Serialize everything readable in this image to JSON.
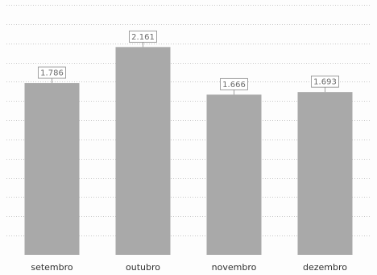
{
  "chart_data": {
    "type": "bar",
    "title": "",
    "xlabel": "",
    "ylabel": "",
    "categories": [
      "setembro",
      "outubro",
      "novembro",
      "dezembro"
    ],
    "values": [
      1.786,
      2.161,
      1.666,
      1.693
    ],
    "data_labels": [
      "1.786",
      "2.161",
      "1.666",
      "1.693"
    ],
    "ylim": [
      0,
      2.6
    ],
    "grid": true,
    "legend": "none",
    "colors": {
      "bar": "#a9a9a9",
      "grid": "#c8c8c8",
      "label_border": "#8a8a8a",
      "label_text": "#6a6a6a",
      "tick_text": "#303030"
    }
  }
}
